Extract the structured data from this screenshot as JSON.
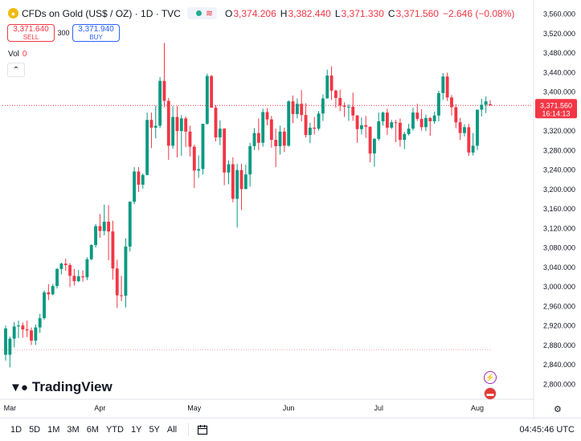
{
  "header": {
    "symbol_icon": "gold-coin-icon",
    "title": "CFDs on Gold (US$ / OZ) · 1D · TVC",
    "market_status_icon": "market-open-icon",
    "wave_icon": "wave-icon",
    "ohlc": [
      {
        "label": "O",
        "value": "3,374.206"
      },
      {
        "label": "H",
        "value": "3,382.440"
      },
      {
        "label": "L",
        "value": "3,371.330"
      },
      {
        "label": "C",
        "value": "3,371.560"
      },
      {
        "label": "",
        "value": "−2.646 (−0.08%)"
      }
    ]
  },
  "trade": {
    "sell_price": "3,371.640",
    "sell_label": "SELL",
    "spread": "300",
    "buy_price": "3,371.940",
    "buy_label": "BUY"
  },
  "volume": {
    "label": "Vol",
    "value": "0"
  },
  "branding": {
    "logo_text": "TradingView"
  },
  "bottom": {
    "ranges": [
      "1D",
      "5D",
      "1M",
      "3M",
      "6M",
      "YTD",
      "1Y",
      "5Y",
      "All"
    ],
    "calendar_icon": "calendar-range-icon",
    "clock": "04:45:46 UTC"
  },
  "colors": {
    "up": "#089981",
    "down": "#f23645",
    "accent": "#2962ff",
    "grid": "#f0f3fa"
  },
  "chart_data": {
    "type": "candlestick",
    "title": "CFDs on Gold (US$ / OZ) · 1D · TVC",
    "x_tick_labels": [
      "Mar",
      "Apr",
      "May",
      "Jun",
      "Jul",
      "Aug"
    ],
    "y_tick_labels": [
      "3,560.000",
      "3,520.000",
      "3,480.000",
      "3,440.000",
      "3,400.000",
      "3,360.000",
      "3,320.000",
      "3,280.000",
      "3,240.000",
      "3,200.000",
      "3,160.000",
      "3,120.000",
      "3,080.000",
      "3,040.000",
      "3,000.000",
      "2,960.000",
      "2,920.000",
      "2,880.000",
      "2,840.000",
      "2,800.000"
    ],
    "ylim": [
      2780,
      3580
    ],
    "grid": false,
    "last_price": "3,371.560",
    "countdown": "16:14:13",
    "last_price_line": 3371.56,
    "prev_close_line": 2870,
    "candles": [
      {
        "x": "2025-02-28",
        "o": 2860,
        "h": 2920,
        "l": 2848,
        "c": 2914
      },
      {
        "x": "2025-03-03",
        "o": 2860,
        "h": 2897,
        "l": 2834,
        "c": 2893
      },
      {
        "x": "2025-03-04",
        "o": 2893,
        "h": 2927,
        "l": 2875,
        "c": 2918
      },
      {
        "x": "2025-03-05",
        "o": 2918,
        "h": 2930,
        "l": 2894,
        "c": 2920
      },
      {
        "x": "2025-03-06",
        "o": 2920,
        "h": 2926,
        "l": 2895,
        "c": 2912
      },
      {
        "x": "2025-03-07",
        "o": 2912,
        "h": 2930,
        "l": 2896,
        "c": 2910
      },
      {
        "x": "2025-03-10",
        "o": 2910,
        "h": 2916,
        "l": 2880,
        "c": 2889
      },
      {
        "x": "2025-03-11",
        "o": 2889,
        "h": 2922,
        "l": 2880,
        "c": 2916
      },
      {
        "x": "2025-03-12",
        "o": 2916,
        "h": 2944,
        "l": 2905,
        "c": 2935
      },
      {
        "x": "2025-03-13",
        "o": 2935,
        "h": 2992,
        "l": 2932,
        "c": 2988
      },
      {
        "x": "2025-03-14",
        "o": 2988,
        "h": 3005,
        "l": 2972,
        "c": 2984
      },
      {
        "x": "2025-03-17",
        "o": 2984,
        "h": 3005,
        "l": 2982,
        "c": 3001
      },
      {
        "x": "2025-03-18",
        "o": 3001,
        "h": 3038,
        "l": 2996,
        "c": 3036
      },
      {
        "x": "2025-03-19",
        "o": 3036,
        "h": 3049,
        "l": 3025,
        "c": 3047
      },
      {
        "x": "2025-03-20",
        "o": 3047,
        "h": 3057,
        "l": 3032,
        "c": 3044
      },
      {
        "x": "2025-03-21",
        "o": 3044,
        "h": 3048,
        "l": 2999,
        "c": 3022
      },
      {
        "x": "2025-03-24",
        "o": 3022,
        "h": 3036,
        "l": 3002,
        "c": 3011
      },
      {
        "x": "2025-03-25",
        "o": 3011,
        "h": 3034,
        "l": 3009,
        "c": 3021
      },
      {
        "x": "2025-03-26",
        "o": 3021,
        "h": 3033,
        "l": 3010,
        "c": 3019
      },
      {
        "x": "2025-03-27",
        "o": 3019,
        "h": 3060,
        "l": 3013,
        "c": 3056
      },
      {
        "x": "2025-03-28",
        "o": 3056,
        "h": 3087,
        "l": 3054,
        "c": 3085
      },
      {
        "x": "2025-03-31",
        "o": 3085,
        "h": 3128,
        "l": 3080,
        "c": 3124
      },
      {
        "x": "2025-04-01",
        "o": 3124,
        "h": 3149,
        "l": 3100,
        "c": 3114
      },
      {
        "x": "2025-04-02",
        "o": 3114,
        "h": 3168,
        "l": 3105,
        "c": 3133
      },
      {
        "x": "2025-04-03",
        "o": 3133,
        "h": 3167,
        "l": 3054,
        "c": 3113
      },
      {
        "x": "2025-04-04",
        "o": 3113,
        "h": 3135,
        "l": 3014,
        "c": 3037
      },
      {
        "x": "2025-04-07",
        "o": 3037,
        "h": 3055,
        "l": 2956,
        "c": 2982
      },
      {
        "x": "2025-04-08",
        "o": 2982,
        "h": 3022,
        "l": 2970,
        "c": 2981
      },
      {
        "x": "2025-04-09",
        "o": 2981,
        "h": 3099,
        "l": 2957,
        "c": 3082
      },
      {
        "x": "2025-04-10",
        "o": 3082,
        "h": 3175,
        "l": 3072,
        "c": 3174
      },
      {
        "x": "2025-04-11",
        "o": 3174,
        "h": 3245,
        "l": 3169,
        "c": 3236
      },
      {
        "x": "2025-04-14",
        "o": 3236,
        "h": 3245,
        "l": 3194,
        "c": 3209
      },
      {
        "x": "2025-04-15",
        "o": 3209,
        "h": 3232,
        "l": 3201,
        "c": 3229
      },
      {
        "x": "2025-04-16",
        "o": 3229,
        "h": 3357,
        "l": 3228,
        "c": 3342
      },
      {
        "x": "2025-04-17",
        "o": 3342,
        "h": 3357,
        "l": 3284,
        "c": 3326
      },
      {
        "x": "2025-04-18",
        "o": 3326,
        "h": 3371,
        "l": 3304,
        "c": 3330
      },
      {
        "x": "2025-04-21",
        "o": 3330,
        "h": 3430,
        "l": 3325,
        "c": 3422
      },
      {
        "x": "2025-04-22",
        "o": 3422,
        "h": 3500,
        "l": 3368,
        "c": 3381
      },
      {
        "x": "2025-04-23",
        "o": 3381,
        "h": 3387,
        "l": 3260,
        "c": 3289
      },
      {
        "x": "2025-04-24",
        "o": 3289,
        "h": 3370,
        "l": 3283,
        "c": 3348
      },
      {
        "x": "2025-04-25",
        "o": 3348,
        "h": 3370,
        "l": 3265,
        "c": 3319
      },
      {
        "x": "2025-04-28",
        "o": 3319,
        "h": 3352,
        "l": 3268,
        "c": 3345
      },
      {
        "x": "2025-04-29",
        "o": 3345,
        "h": 3349,
        "l": 3286,
        "c": 3318
      },
      {
        "x": "2025-04-30",
        "o": 3318,
        "h": 3330,
        "l": 3267,
        "c": 3287
      },
      {
        "x": "2025-05-01",
        "o": 3287,
        "h": 3291,
        "l": 3202,
        "c": 3238
      },
      {
        "x": "2025-05-02",
        "o": 3238,
        "h": 3269,
        "l": 3223,
        "c": 3241
      },
      {
        "x": "2025-05-05",
        "o": 3241,
        "h": 3334,
        "l": 3230,
        "c": 3334
      },
      {
        "x": "2025-05-06",
        "o": 3334,
        "h": 3437,
        "l": 3332,
        "c": 3432
      },
      {
        "x": "2025-05-07",
        "o": 3432,
        "h": 3434,
        "l": 3367,
        "c": 3367
      },
      {
        "x": "2025-05-08",
        "o": 3367,
        "h": 3372,
        "l": 3298,
        "c": 3306
      },
      {
        "x": "2025-05-09",
        "o": 3306,
        "h": 3341,
        "l": 3290,
        "c": 3324
      },
      {
        "x": "2025-05-12",
        "o": 3324,
        "h": 3325,
        "l": 3208,
        "c": 3234
      },
      {
        "x": "2025-05-13",
        "o": 3234,
        "h": 3259,
        "l": 3210,
        "c": 3251
      },
      {
        "x": "2025-05-14",
        "o": 3251,
        "h": 3265,
        "l": 3173,
        "c": 3180
      },
      {
        "x": "2025-05-15",
        "o": 3180,
        "h": 3252,
        "l": 3121,
        "c": 3239
      },
      {
        "x": "2025-05-16",
        "o": 3239,
        "h": 3252,
        "l": 3157,
        "c": 3200
      },
      {
        "x": "2025-05-19",
        "o": 3200,
        "h": 3250,
        "l": 3205,
        "c": 3230
      },
      {
        "x": "2025-05-20",
        "o": 3230,
        "h": 3295,
        "l": 3205,
        "c": 3288
      },
      {
        "x": "2025-05-21",
        "o": 3288,
        "h": 3325,
        "l": 3280,
        "c": 3315
      },
      {
        "x": "2025-05-22",
        "o": 3315,
        "h": 3345,
        "l": 3280,
        "c": 3295
      },
      {
        "x": "2025-05-23",
        "o": 3295,
        "h": 3365,
        "l": 3287,
        "c": 3358
      },
      {
        "x": "2025-05-26",
        "o": 3358,
        "h": 3366,
        "l": 3331,
        "c": 3343
      },
      {
        "x": "2025-05-27",
        "o": 3343,
        "h": 3350,
        "l": 3285,
        "c": 3301
      },
      {
        "x": "2025-05-28",
        "o": 3301,
        "h": 3324,
        "l": 3245,
        "c": 3288
      },
      {
        "x": "2025-05-29",
        "o": 3288,
        "h": 3330,
        "l": 3271,
        "c": 3318
      },
      {
        "x": "2025-05-30",
        "o": 3318,
        "h": 3326,
        "l": 3276,
        "c": 3289
      },
      {
        "x": "2025-06-02",
        "o": 3289,
        "h": 3382,
        "l": 3287,
        "c": 3380
      },
      {
        "x": "2025-06-03",
        "o": 3380,
        "h": 3392,
        "l": 3335,
        "c": 3354
      },
      {
        "x": "2025-06-04",
        "o": 3354,
        "h": 3386,
        "l": 3345,
        "c": 3375
      },
      {
        "x": "2025-06-05",
        "o": 3375,
        "h": 3403,
        "l": 3339,
        "c": 3352
      },
      {
        "x": "2025-06-06",
        "o": 3352,
        "h": 3376,
        "l": 3306,
        "c": 3311
      },
      {
        "x": "2025-06-09",
        "o": 3311,
        "h": 3336,
        "l": 3294,
        "c": 3326
      },
      {
        "x": "2025-06-10",
        "o": 3326,
        "h": 3348,
        "l": 3312,
        "c": 3324
      },
      {
        "x": "2025-06-11",
        "o": 3324,
        "h": 3360,
        "l": 3320,
        "c": 3355
      },
      {
        "x": "2025-06-12",
        "o": 3355,
        "h": 3394,
        "l": 3340,
        "c": 3386
      },
      {
        "x": "2025-06-13",
        "o": 3386,
        "h": 3445,
        "l": 3386,
        "c": 3433
      },
      {
        "x": "2025-06-16",
        "o": 3433,
        "h": 3452,
        "l": 3383,
        "c": 3402
      },
      {
        "x": "2025-06-17",
        "o": 3402,
        "h": 3404,
        "l": 3367,
        "c": 3387
      },
      {
        "x": "2025-06-18",
        "o": 3387,
        "h": 3404,
        "l": 3360,
        "c": 3371
      },
      {
        "x": "2025-06-19",
        "o": 3371,
        "h": 3378,
        "l": 3348,
        "c": 3369
      },
      {
        "x": "2025-06-20",
        "o": 3369,
        "h": 3374,
        "l": 3340,
        "c": 3369
      },
      {
        "x": "2025-06-23",
        "o": 3369,
        "h": 3398,
        "l": 3340,
        "c": 3351
      },
      {
        "x": "2025-06-24",
        "o": 3351,
        "h": 3352,
        "l": 3295,
        "c": 3323
      },
      {
        "x": "2025-06-25",
        "o": 3323,
        "h": 3347,
        "l": 3312,
        "c": 3331
      },
      {
        "x": "2025-06-26",
        "o": 3331,
        "h": 3350,
        "l": 3305,
        "c": 3328
      },
      {
        "x": "2025-06-27",
        "o": 3328,
        "h": 3328,
        "l": 3255,
        "c": 3273
      },
      {
        "x": "2025-06-30",
        "o": 3273,
        "h": 3305,
        "l": 3246,
        "c": 3303
      },
      {
        "x": "2025-07-01",
        "o": 3303,
        "h": 3357,
        "l": 3299,
        "c": 3339
      },
      {
        "x": "2025-07-02",
        "o": 3339,
        "h": 3359,
        "l": 3330,
        "c": 3357
      },
      {
        "x": "2025-07-03",
        "o": 3357,
        "h": 3365,
        "l": 3311,
        "c": 3326
      },
      {
        "x": "2025-07-04",
        "o": 3326,
        "h": 3342,
        "l": 3323,
        "c": 3337
      },
      {
        "x": "2025-07-07",
        "o": 3337,
        "h": 3342,
        "l": 3296,
        "c": 3336
      },
      {
        "x": "2025-07-08",
        "o": 3336,
        "h": 3345,
        "l": 3287,
        "c": 3301
      },
      {
        "x": "2025-07-09",
        "o": 3301,
        "h": 3317,
        "l": 3282,
        "c": 3313
      },
      {
        "x": "2025-07-10",
        "o": 3313,
        "h": 3334,
        "l": 3310,
        "c": 3324
      },
      {
        "x": "2025-07-11",
        "o": 3324,
        "h": 3367,
        "l": 3320,
        "c": 3357
      },
      {
        "x": "2025-07-14",
        "o": 3357,
        "h": 3375,
        "l": 3340,
        "c": 3344
      },
      {
        "x": "2025-07-15",
        "o": 3344,
        "h": 3364,
        "l": 3320,
        "c": 3327
      },
      {
        "x": "2025-07-16",
        "o": 3327,
        "h": 3353,
        "l": 3319,
        "c": 3346
      },
      {
        "x": "2025-07-17",
        "o": 3346,
        "h": 3348,
        "l": 3309,
        "c": 3339
      },
      {
        "x": "2025-07-18",
        "o": 3339,
        "h": 3359,
        "l": 3334,
        "c": 3351
      },
      {
        "x": "2025-07-21",
        "o": 3351,
        "h": 3402,
        "l": 3339,
        "c": 3397
      },
      {
        "x": "2025-07-22",
        "o": 3397,
        "h": 3438,
        "l": 3383,
        "c": 3431
      },
      {
        "x": "2025-07-23",
        "o": 3431,
        "h": 3439,
        "l": 3381,
        "c": 3388
      },
      {
        "x": "2025-07-24",
        "o": 3388,
        "h": 3393,
        "l": 3351,
        "c": 3368
      },
      {
        "x": "2025-07-25",
        "o": 3368,
        "h": 3374,
        "l": 3325,
        "c": 3337
      },
      {
        "x": "2025-07-28",
        "o": 3337,
        "h": 3346,
        "l": 3301,
        "c": 3315
      },
      {
        "x": "2025-07-29",
        "o": 3315,
        "h": 3333,
        "l": 3308,
        "c": 3327
      },
      {
        "x": "2025-07-30",
        "o": 3327,
        "h": 3334,
        "l": 3268,
        "c": 3275
      },
      {
        "x": "2025-07-31",
        "o": 3275,
        "h": 3315,
        "l": 3269,
        "c": 3289
      },
      {
        "x": "2025-08-01",
        "o": 3289,
        "h": 3363,
        "l": 3280,
        "c": 3363
      },
      {
        "x": "2025-08-04",
        "o": 3363,
        "h": 3385,
        "l": 3349,
        "c": 3373
      },
      {
        "x": "2025-08-05",
        "o": 3373,
        "h": 3390,
        "l": 3356,
        "c": 3380
      },
      {
        "x": "2025-08-06",
        "o": 3374.206,
        "h": 3382.44,
        "l": 3371.33,
        "c": 3371.56
      }
    ]
  }
}
